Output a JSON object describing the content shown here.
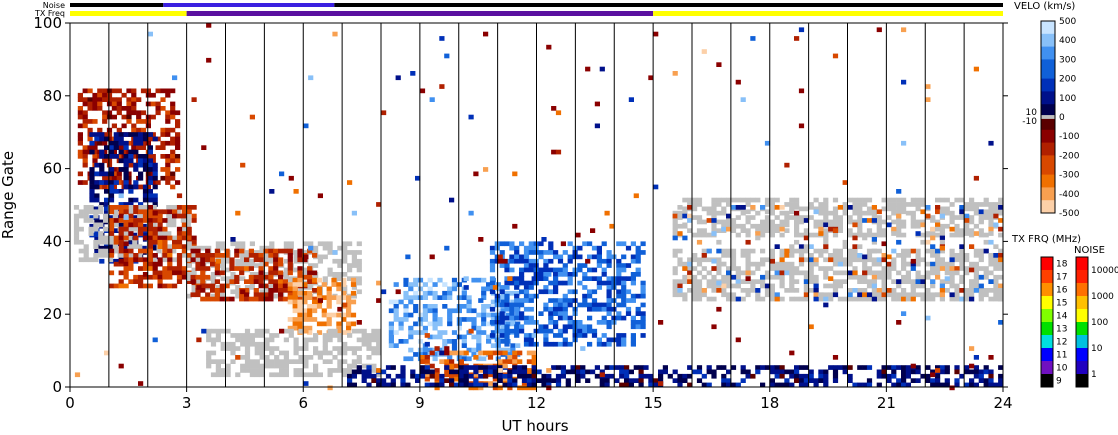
{
  "chart_data": {
    "type": "heatmap",
    "xlabel": "UT hours",
    "ylabel": "Range Gate",
    "xlim": [
      0,
      24
    ],
    "ylim": [
      0,
      100
    ],
    "x_ticks": [
      "0",
      "3",
      "6",
      "9",
      "12",
      "15",
      "18",
      "21",
      "24"
    ],
    "y_ticks": [
      "0",
      "20",
      "40",
      "60",
      "80",
      "100"
    ],
    "grid_x": true,
    "status_bars": {
      "noise_label": "Noise",
      "txfreq_label": "TX Freq",
      "noise_segments": [
        {
          "start": 0,
          "end": 2.4,
          "level": "low"
        },
        {
          "start": 2.4,
          "end": 6.8,
          "level": "high"
        },
        {
          "start": 6.8,
          "end": 24,
          "level": "low"
        }
      ],
      "txfreq_segments": [
        {
          "start": 0,
          "end": 3.0,
          "freq_mhz": 15
        },
        {
          "start": 3.0,
          "end": 15.0,
          "freq_mhz": 10
        },
        {
          "start": 15.0,
          "end": 24,
          "freq_mhz": 15
        }
      ]
    },
    "velocity_colorbar": {
      "title": "VELO (km/s)",
      "ticks_pos": [
        "500",
        "400",
        "300",
        "200",
        "100"
      ],
      "ticks_zero": [
        "0"
      ],
      "ticks_neg": [
        "-100",
        "-200",
        "-300",
        "-400",
        "-500"
      ],
      "gs_labels": [
        "10",
        "-10"
      ],
      "range": [
        -500,
        500
      ]
    },
    "txfreq_colorbar": {
      "title": "TX FRQ (MHz)",
      "ticks": [
        "18",
        "17",
        "16",
        "15",
        "14",
        "13",
        "12",
        "11",
        "10",
        "9"
      ]
    },
    "noise_colorbar": {
      "title": "NOISE",
      "ticks": [
        "10000",
        "1000",
        "100",
        "10",
        "1"
      ]
    },
    "scatter_regions": [
      {
        "kind": "negative",
        "x": [
          0.2,
          2.8
        ],
        "y": [
          55,
          82
        ],
        "velocity": -150
      },
      {
        "kind": "positive",
        "x": [
          0.5,
          2.2
        ],
        "y": [
          35,
          70
        ],
        "velocity": 100
      },
      {
        "kind": "ground",
        "x": [
          0.1,
          3.0
        ],
        "y": [
          35,
          50
        ],
        "velocity": 0
      },
      {
        "kind": "negative",
        "x": [
          1.0,
          3.2
        ],
        "y": [
          28,
          50
        ],
        "velocity": -200
      },
      {
        "kind": "ground",
        "x": [
          3.0,
          7.5
        ],
        "y": [
          25,
          40
        ],
        "velocity": 0
      },
      {
        "kind": "negative",
        "x": [
          3.1,
          6.3
        ],
        "y": [
          24,
          38
        ],
        "velocity": -200
      },
      {
        "kind": "negative",
        "x": [
          5.6,
          7.3
        ],
        "y": [
          15,
          30
        ],
        "velocity": -400
      },
      {
        "kind": "ground",
        "x": [
          3.5,
          8.0
        ],
        "y": [
          4,
          16
        ],
        "velocity": 0
      },
      {
        "kind": "positive",
        "x": [
          8.2,
          11.5
        ],
        "y": [
          8,
          30
        ],
        "velocity": 350
      },
      {
        "kind": "positive",
        "x": [
          10.8,
          14.8
        ],
        "y": [
          12,
          40
        ],
        "velocity": 250
      },
      {
        "kind": "negative",
        "x": [
          9.0,
          12.0
        ],
        "y": [
          0,
          10
        ],
        "velocity": -300
      },
      {
        "kind": "positive",
        "x": [
          7.0,
          24.0
        ],
        "y": [
          0,
          6
        ],
        "velocity": 80
      },
      {
        "kind": "ground",
        "x": [
          15.5,
          24.0
        ],
        "y": [
          42,
          52
        ],
        "velocity": 0
      },
      {
        "kind": "ground",
        "x": [
          15.5,
          24.0
        ],
        "y": [
          24,
          38
        ],
        "velocity": 0
      },
      {
        "kind": "mixed",
        "x": [
          15.5,
          24.0
        ],
        "y": [
          24,
          50
        ],
        "velocity": 0
      },
      {
        "kind": "noise",
        "x": [
          0,
          24.0
        ],
        "y": [
          0,
          100
        ],
        "velocity": 0
      }
    ]
  }
}
